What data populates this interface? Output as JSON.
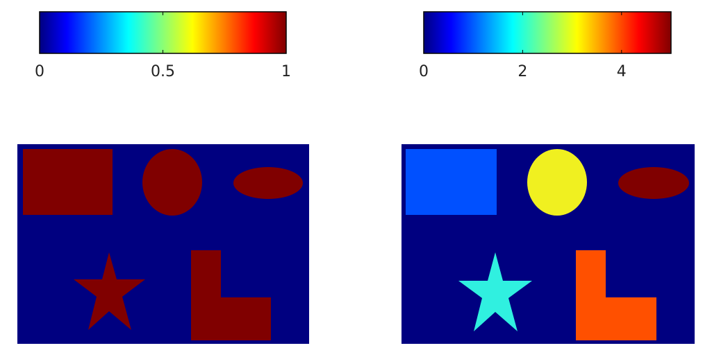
{
  "colormap": "jet",
  "background_color": "#000080",
  "left_panel": {
    "colorbar": {
      "range": [
        0,
        1
      ],
      "ticks": [
        {
          "value": 0,
          "label": "0"
        },
        {
          "value": 0.5,
          "label": "0.5"
        },
        {
          "value": 1,
          "label": "1"
        }
      ]
    },
    "shapes": [
      {
        "name": "square",
        "value": 1,
        "color": "#800000"
      },
      {
        "name": "circle",
        "value": 1,
        "color": "#800000"
      },
      {
        "name": "ellipse",
        "value": 1,
        "color": "#800000"
      },
      {
        "name": "star",
        "value": 1,
        "color": "#800000"
      },
      {
        "name": "l-shape",
        "value": 1,
        "color": "#800000"
      }
    ]
  },
  "right_panel": {
    "colorbar": {
      "range": [
        0,
        5
      ],
      "ticks": [
        {
          "value": 0,
          "label": "0"
        },
        {
          "value": 2,
          "label": "2"
        },
        {
          "value": 4,
          "label": "4"
        }
      ]
    },
    "shapes": [
      {
        "name": "square",
        "value": 1,
        "color": "#0050ff"
      },
      {
        "name": "circle",
        "value": 3,
        "color": "#f0f020"
      },
      {
        "name": "ellipse",
        "value": 5,
        "color": "#800000"
      },
      {
        "name": "star",
        "value": 2,
        "color": "#30f0e0"
      },
      {
        "name": "l-shape",
        "value": 4,
        "color": "#ff5000"
      }
    ]
  }
}
